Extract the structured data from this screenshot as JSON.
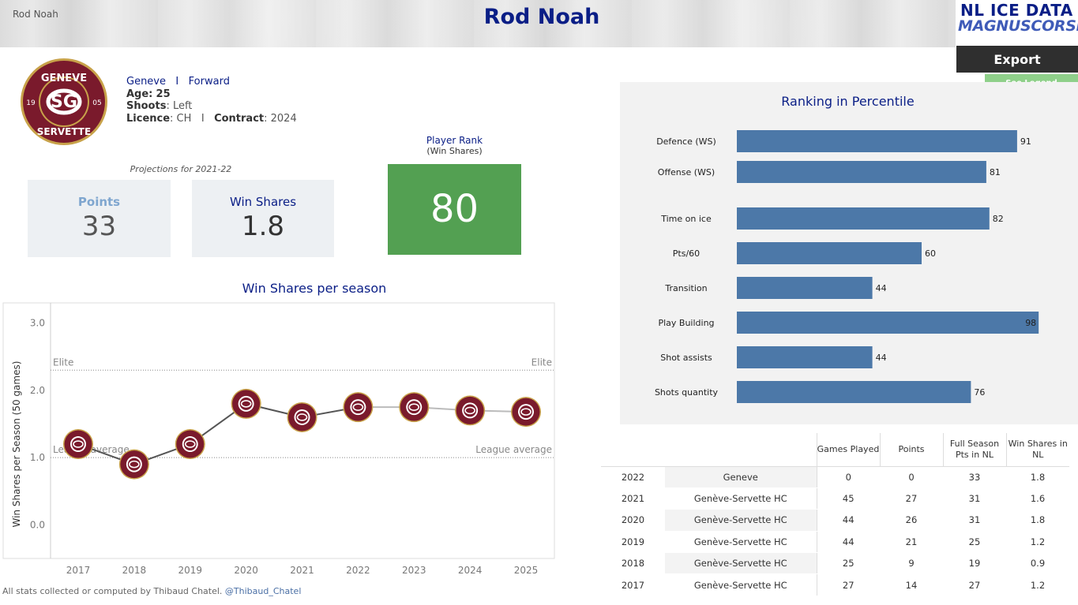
{
  "header": {
    "player_label": "Rod Noah",
    "title": "Rod Noah",
    "brand_line1": "NL ICE DATA",
    "brand_line2": "MAGNUSCORSI",
    "export_label": "Export",
    "legend_label": "See Legend"
  },
  "club": {
    "logo_text_top": "GENEVE",
    "logo_text_bottom": "SERVETTE",
    "logo_year_left": "19",
    "logo_year_right": "05"
  },
  "player": {
    "team": "Geneve",
    "separator": "I",
    "position": "Forward",
    "age_label": "Age:",
    "age": "25",
    "shoots_label": "Shoots",
    "shoots": ": Left",
    "licence_label": "Licence",
    "licence": ": CH",
    "contract_label": "Contract",
    "contract": ": 2024"
  },
  "projections": {
    "label": "Projections for 2021-22",
    "points_label": "Points",
    "points_value": "33",
    "ws_label": "Win Shares",
    "ws_value": "1.8"
  },
  "player_rank": {
    "title": "Player Rank",
    "subtitle": "(Win Shares)",
    "value": "80"
  },
  "chart_data": [
    {
      "type": "line",
      "title": "Win Shares per season",
      "ylabel": "Win Shares per Season (50 games)",
      "xlabel": "",
      "x": [
        "2017",
        "2018",
        "2019",
        "2020",
        "2021",
        "2022",
        "2023",
        "2024",
        "2025"
      ],
      "series": [
        {
          "values": [
            1.2,
            0.9,
            1.2,
            1.8,
            1.6,
            1.75,
            1.75,
            1.7,
            1.68
          ]
        }
      ],
      "ylim": [
        -0.5,
        3.3
      ],
      "yticks": [
        "3.0",
        "2.0",
        "1.0",
        "0.0"
      ],
      "reference_lines": [
        {
          "label_left": "Elite",
          "label_right": "Elite",
          "value": 2.3
        },
        {
          "label_left": "League average",
          "label_right": "League average",
          "value": 1.0
        }
      ]
    },
    {
      "type": "bar",
      "title": "Ranking in Percentile",
      "orientation": "horizontal",
      "categories": [
        "Defence (WS)",
        "Offense (WS)",
        "Time on ice",
        "Pts/60",
        "Transition",
        "Play Building",
        "Shot assists",
        "Shots quantity"
      ],
      "values": [
        91,
        81,
        82,
        60,
        44,
        98,
        44,
        76
      ],
      "xlim": [
        0,
        100
      ],
      "bar_color": "#4c78a8"
    }
  ],
  "table": {
    "headers": [
      "",
      "",
      "Games Played",
      "Points",
      "Full Season Pts in NL",
      "Win Shares in NL"
    ],
    "rows": [
      [
        "2022",
        "Geneve",
        "0",
        "0",
        "33",
        "1.8"
      ],
      [
        "2021",
        "Genève-Servette HC",
        "45",
        "27",
        "31",
        "1.6"
      ],
      [
        "2020",
        "Genève-Servette HC",
        "44",
        "26",
        "31",
        "1.8"
      ],
      [
        "2019",
        "Genève-Servette HC",
        "44",
        "21",
        "25",
        "1.2"
      ],
      [
        "2018",
        "Genève-Servette HC",
        "25",
        "9",
        "19",
        "0.9"
      ],
      [
        "2017",
        "Genève-Servette HC",
        "27",
        "14",
        "27",
        "1.2"
      ]
    ]
  },
  "footer": {
    "text": "All stats collected or computed by Thibaud Chatel.",
    "handle": "@Thibaud_Chatel"
  },
  "colors": {
    "navy": "#0a1e86",
    "rank_green": "#53a052",
    "bar_blue": "#4c78a8",
    "club_maroon": "#7a1a2c",
    "club_gold": "#c8a24a"
  }
}
